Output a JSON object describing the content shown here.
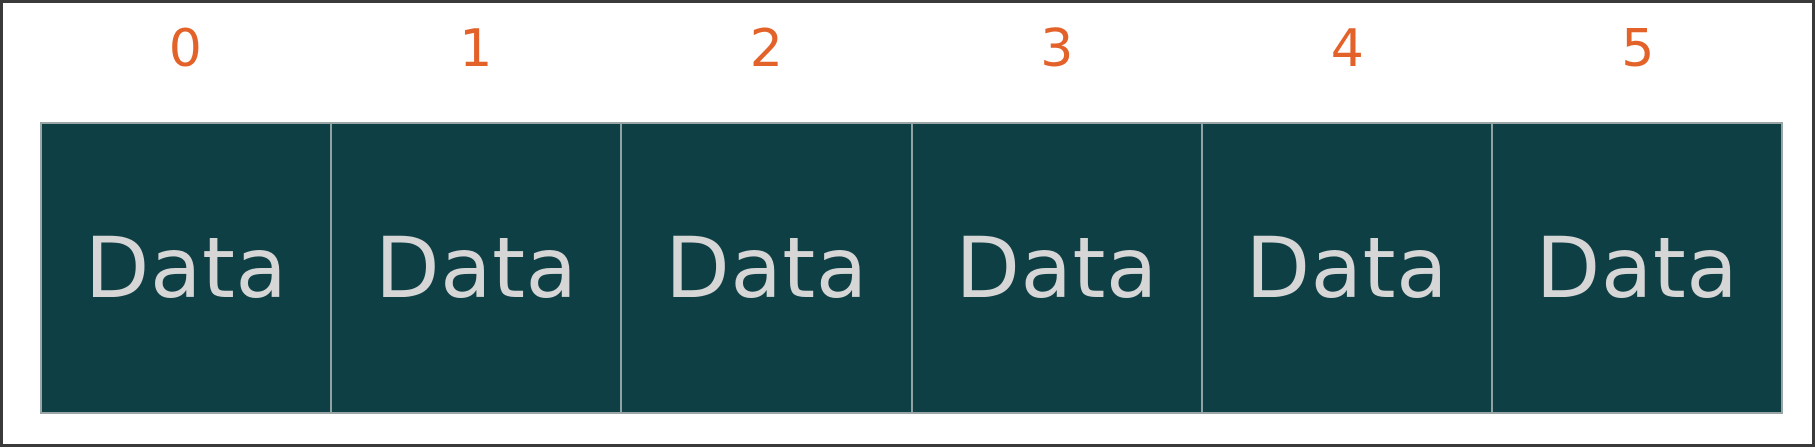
{
  "indices": [
    "0",
    "1",
    "2",
    "3",
    "4",
    "5"
  ],
  "cells": [
    "Data",
    "Data",
    "Data",
    "Data",
    "Data",
    "Data"
  ],
  "colors": {
    "index_text": "#e2622a",
    "cell_background": "#0e3f45",
    "cell_text": "#d6d6d6",
    "cell_border": "#8fa3a3",
    "frame_border": "#3a3a3a"
  }
}
